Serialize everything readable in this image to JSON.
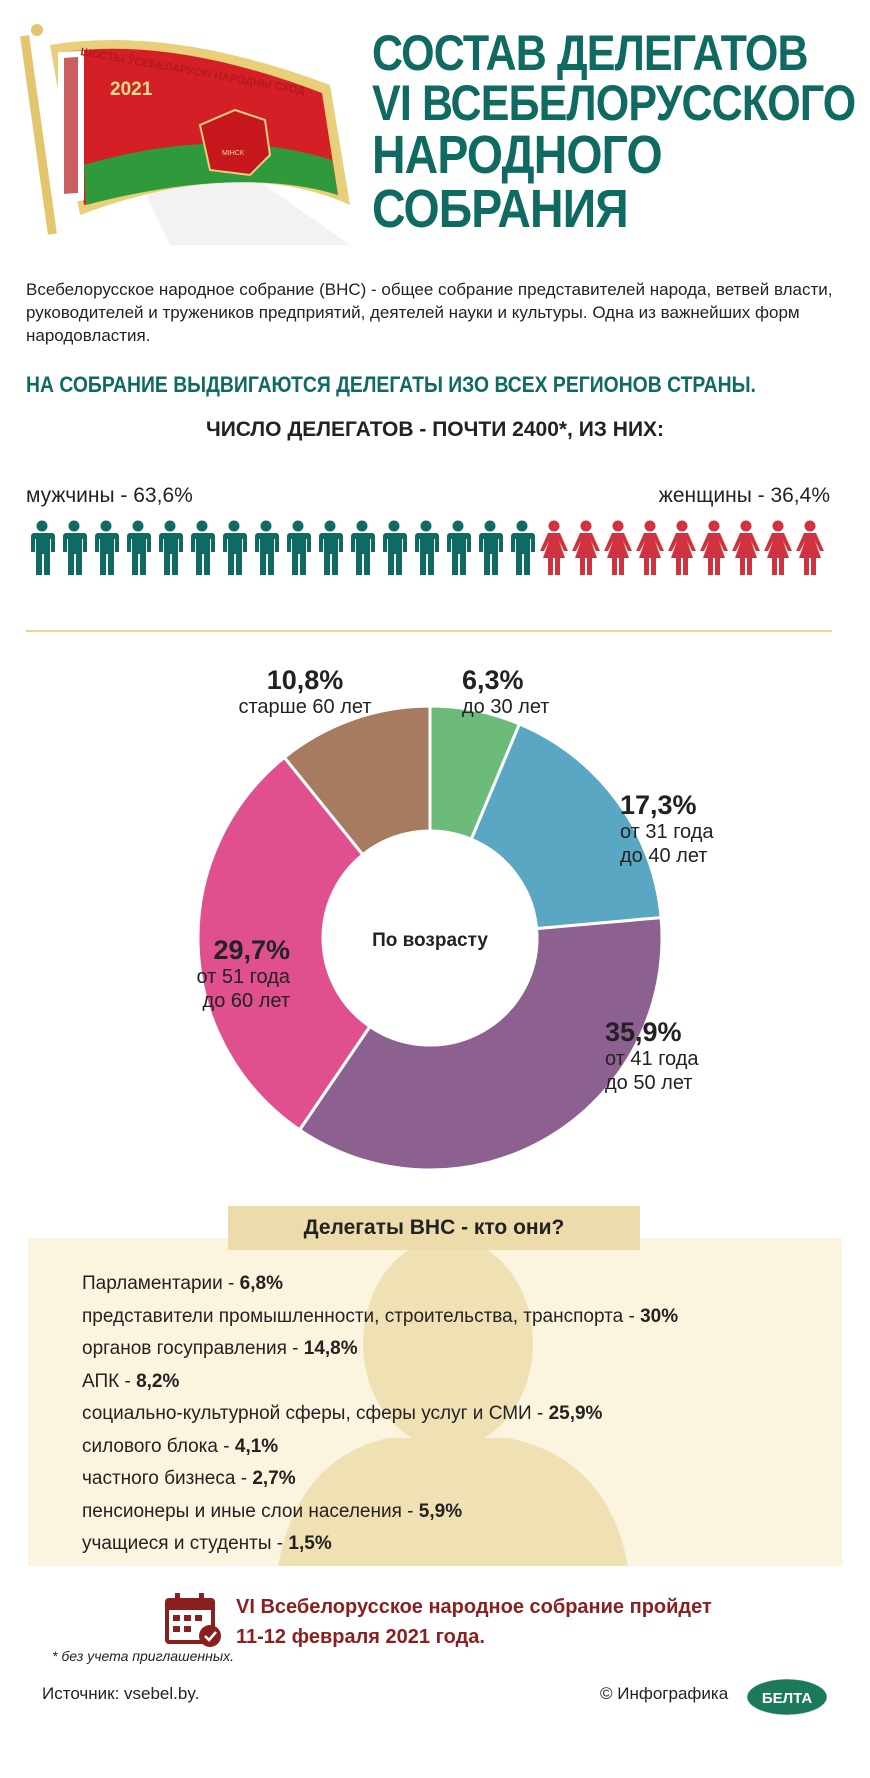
{
  "flag": {
    "banner": "ШОСТЫ ЎСЕБЕЛАРУСКІ НАРОДНЫ СХОД",
    "year": "2021",
    "city": "МІНСК"
  },
  "title": [
    "СОСТАВ ДЕЛЕГАТОВ",
    "VI ВСЕБЕЛОРУССКОГО",
    "НАРОДНОГО",
    "СОБРАНИЯ"
  ],
  "intro": "Всебелорусское народное собрание (ВНС) - общее собрание представителей народа, ветвей власти, руководителей и тружеников предприятий, деятелей науки и культуры. Одна из важнейших форм народовластия.",
  "regions": "НА СОБРАНИЕ ВЫДВИГАЮТСЯ ДЕЛЕГАТЫ ИЗО ВСЕХ РЕГИОНОВ СТРАНЫ.",
  "count": "ЧИСЛО ДЕЛЕГАТОВ - ПОЧТИ 2400*, ИЗ НИХ:",
  "gender": {
    "men_label": "мужчины - 63,6%",
    "women_label": "женщины - 36,4%",
    "men_pct": 63.6,
    "women_pct": 36.4,
    "men_icons": 16,
    "women_icons": 9,
    "men_color": "#0f6a62",
    "women_color": "#d0323f"
  },
  "chart_data": {
    "type": "pie",
    "title": "По возрасту",
    "categories": [
      "до 30 лет",
      "от 31 года до 40 лет",
      "от 41 года до 50 лет",
      "от 51 года до 60 лет",
      "старше 60 лет"
    ],
    "values": [
      6.3,
      17.3,
      35.9,
      29.7,
      10.8
    ],
    "value_labels": [
      "6,3%",
      "17,3%",
      "35,9%",
      "29,7%",
      "10,8%"
    ],
    "label_lines": [
      [
        "до 30 лет"
      ],
      [
        "от 31 года",
        "до 40 лет"
      ],
      [
        "от 41 года",
        "до 50 лет"
      ],
      [
        "от 51 года",
        "до 60 лет"
      ],
      [
        "старше 60 лет"
      ]
    ],
    "colors": [
      "#6dbb7a",
      "#5aa7c4",
      "#8c6190",
      "#e0508e",
      "#a77b5f"
    ]
  },
  "who": {
    "heading": "Делегаты ВНС - кто они?",
    "items": [
      {
        "label": "Парламентарии - ",
        "value": "6,8%"
      },
      {
        "label": "представители промышленности, строительства, транспорта - ",
        "value": "30%"
      },
      {
        "label": "органов госуправления - ",
        "value": "14,8%"
      },
      {
        "label": "АПК - ",
        "value": "8,2%"
      },
      {
        "label": "социально-культурной сферы, сферы услуг и СМИ - ",
        "value": "25,9%"
      },
      {
        "label": "силового блока - ",
        "value": "4,1%"
      },
      {
        "label": "частного бизнеса - ",
        "value": "2,7%"
      },
      {
        "label": "пенсионеры и иные слои населения - ",
        "value": "5,9%"
      },
      {
        "label": "учащиеся и студенты - ",
        "value": "1,5%"
      }
    ]
  },
  "event": [
    "VI Всебелорусское народное собрание пройдет",
    "11-12 февраля 2021 года."
  ],
  "footnote": "* без учета приглашенных.",
  "source": "Источник: vsebel.by.",
  "copyright": "© Инфографика",
  "logo": "БЕЛТА"
}
